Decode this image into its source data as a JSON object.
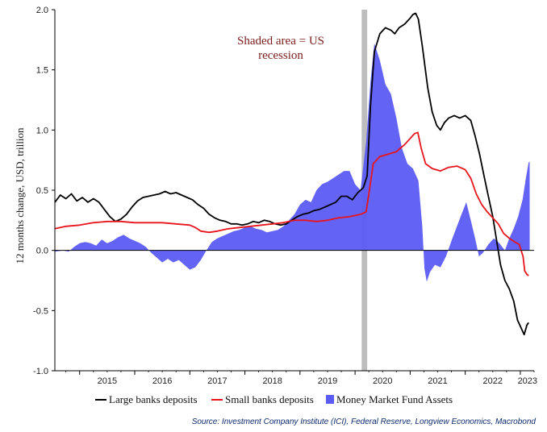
{
  "chart_data": {
    "type": "line",
    "ylabel": "12 months change, USD, trillion",
    "ylim": [
      -1.0,
      2.0
    ],
    "yticks": [
      "2.0",
      "1.5",
      "1.0",
      "0.5",
      "0.0",
      "-0.5",
      "-1.0"
    ],
    "xlim": [
      2014.55,
      2023.25
    ],
    "xticks": [
      "2015",
      "2016",
      "2017",
      "2018",
      "2019",
      "2020",
      "2021",
      "2022",
      "2023"
    ],
    "grid": false,
    "legend_position": "bottom",
    "annotation": "Shaded area = US recession",
    "annotation_lines": [
      "Shaded area = US",
      "recession"
    ],
    "recession_band": [
      2020.12,
      2020.22
    ],
    "source": "Source: Investment Company Institute (ICI), Federal Reserve, Longview Economics, Macrobond",
    "series": [
      {
        "name": "Large banks deposits",
        "kind": "line",
        "color": "#000000",
        "points": [
          [
            2014.55,
            0.4
          ],
          [
            2014.65,
            0.46
          ],
          [
            2014.75,
            0.43
          ],
          [
            2014.85,
            0.47
          ],
          [
            2014.95,
            0.41
          ],
          [
            2015.05,
            0.44
          ],
          [
            2015.15,
            0.4
          ],
          [
            2015.25,
            0.43
          ],
          [
            2015.35,
            0.4
          ],
          [
            2015.45,
            0.34
          ],
          [
            2015.55,
            0.28
          ],
          [
            2015.65,
            0.24
          ],
          [
            2015.75,
            0.26
          ],
          [
            2015.85,
            0.3
          ],
          [
            2015.95,
            0.36
          ],
          [
            2016.05,
            0.41
          ],
          [
            2016.15,
            0.44
          ],
          [
            2016.25,
            0.45
          ],
          [
            2016.35,
            0.46
          ],
          [
            2016.45,
            0.47
          ],
          [
            2016.55,
            0.49
          ],
          [
            2016.65,
            0.47
          ],
          [
            2016.75,
            0.48
          ],
          [
            2016.85,
            0.46
          ],
          [
            2016.95,
            0.44
          ],
          [
            2017.05,
            0.42
          ],
          [
            2017.15,
            0.38
          ],
          [
            2017.25,
            0.35
          ],
          [
            2017.35,
            0.3
          ],
          [
            2017.45,
            0.27
          ],
          [
            2017.55,
            0.25
          ],
          [
            2017.65,
            0.24
          ],
          [
            2017.75,
            0.22
          ],
          [
            2017.85,
            0.22
          ],
          [
            2017.95,
            0.21
          ],
          [
            2018.05,
            0.22
          ],
          [
            2018.15,
            0.24
          ],
          [
            2018.25,
            0.23
          ],
          [
            2018.35,
            0.25
          ],
          [
            2018.45,
            0.24
          ],
          [
            2018.55,
            0.22
          ],
          [
            2018.65,
            0.21
          ],
          [
            2018.75,
            0.22
          ],
          [
            2018.85,
            0.25
          ],
          [
            2018.95,
            0.28
          ],
          [
            2019.05,
            0.3
          ],
          [
            2019.15,
            0.31
          ],
          [
            2019.25,
            0.33
          ],
          [
            2019.35,
            0.34
          ],
          [
            2019.45,
            0.36
          ],
          [
            2019.55,
            0.38
          ],
          [
            2019.65,
            0.4
          ],
          [
            2019.75,
            0.45
          ],
          [
            2019.85,
            0.45
          ],
          [
            2019.95,
            0.42
          ],
          [
            2020.05,
            0.48
          ],
          [
            2020.15,
            0.52
          ],
          [
            2020.22,
            0.62
          ],
          [
            2020.28,
            1.2
          ],
          [
            2020.35,
            1.65
          ],
          [
            2020.45,
            1.8
          ],
          [
            2020.55,
            1.85
          ],
          [
            2020.65,
            1.83
          ],
          [
            2020.72,
            1.8
          ],
          [
            2020.8,
            1.85
          ],
          [
            2020.9,
            1.88
          ],
          [
            2021.0,
            1.93
          ],
          [
            2021.05,
            1.96
          ],
          [
            2021.1,
            1.97
          ],
          [
            2021.15,
            1.92
          ],
          [
            2021.22,
            1.7
          ],
          [
            2021.32,
            1.35
          ],
          [
            2021.4,
            1.15
          ],
          [
            2021.48,
            1.04
          ],
          [
            2021.55,
            1.0
          ],
          [
            2021.62,
            1.06
          ],
          [
            2021.7,
            1.1
          ],
          [
            2021.8,
            1.12
          ],
          [
            2021.9,
            1.1
          ],
          [
            2022.0,
            1.12
          ],
          [
            2022.1,
            1.08
          ],
          [
            2022.18,
            0.95
          ],
          [
            2022.26,
            0.8
          ],
          [
            2022.34,
            0.62
          ],
          [
            2022.42,
            0.45
          ],
          [
            2022.5,
            0.28
          ],
          [
            2022.57,
            0.08
          ],
          [
            2022.64,
            -0.12
          ],
          [
            2022.72,
            -0.25
          ],
          [
            2022.8,
            -0.32
          ],
          [
            2022.88,
            -0.42
          ],
          [
            2022.95,
            -0.58
          ],
          [
            2023.02,
            -0.65
          ],
          [
            2023.07,
            -0.7
          ],
          [
            2023.12,
            -0.62
          ],
          [
            2023.15,
            -0.6
          ]
        ]
      },
      {
        "name": "Small banks deposits",
        "kind": "line",
        "color": "#e8141c",
        "points": [
          [
            2014.55,
            0.18
          ],
          [
            2014.75,
            0.2
          ],
          [
            2015.0,
            0.21
          ],
          [
            2015.25,
            0.23
          ],
          [
            2015.5,
            0.24
          ],
          [
            2015.75,
            0.24
          ],
          [
            2016.0,
            0.23
          ],
          [
            2016.25,
            0.23
          ],
          [
            2016.5,
            0.23
          ],
          [
            2016.75,
            0.22
          ],
          [
            2017.0,
            0.21
          ],
          [
            2017.1,
            0.19
          ],
          [
            2017.2,
            0.16
          ],
          [
            2017.35,
            0.15
          ],
          [
            2017.5,
            0.16
          ],
          [
            2017.7,
            0.18
          ],
          [
            2017.9,
            0.19
          ],
          [
            2018.1,
            0.2
          ],
          [
            2018.3,
            0.21
          ],
          [
            2018.5,
            0.22
          ],
          [
            2018.7,
            0.23
          ],
          [
            2018.9,
            0.25
          ],
          [
            2019.1,
            0.25
          ],
          [
            2019.3,
            0.24
          ],
          [
            2019.5,
            0.25
          ],
          [
            2019.7,
            0.27
          ],
          [
            2019.9,
            0.28
          ],
          [
            2020.1,
            0.3
          ],
          [
            2020.2,
            0.32
          ],
          [
            2020.26,
            0.5
          ],
          [
            2020.33,
            0.72
          ],
          [
            2020.45,
            0.78
          ],
          [
            2020.6,
            0.8
          ],
          [
            2020.75,
            0.82
          ],
          [
            2020.9,
            0.88
          ],
          [
            2021.0,
            0.93
          ],
          [
            2021.08,
            0.97
          ],
          [
            2021.14,
            0.98
          ],
          [
            2021.2,
            0.85
          ],
          [
            2021.28,
            0.72
          ],
          [
            2021.4,
            0.68
          ],
          [
            2021.55,
            0.66
          ],
          [
            2021.7,
            0.69
          ],
          [
            2021.85,
            0.7
          ],
          [
            2022.0,
            0.67
          ],
          [
            2022.1,
            0.6
          ],
          [
            2022.2,
            0.47
          ],
          [
            2022.3,
            0.38
          ],
          [
            2022.4,
            0.32
          ],
          [
            2022.5,
            0.27
          ],
          [
            2022.6,
            0.22
          ],
          [
            2022.7,
            0.14
          ],
          [
            2022.8,
            0.1
          ],
          [
            2022.9,
            0.07
          ],
          [
            2022.98,
            0.05
          ],
          [
            2023.05,
            -0.05
          ],
          [
            2023.08,
            -0.17
          ],
          [
            2023.12,
            -0.2
          ],
          [
            2023.15,
            -0.21
          ]
        ]
      },
      {
        "name": "Money Market Fund Assets",
        "kind": "area",
        "color": "#5b5bf5",
        "points": [
          [
            2014.55,
            -0.01
          ],
          [
            2014.7,
            0.0
          ],
          [
            2014.8,
            -0.01
          ],
          [
            2014.9,
            0.03
          ],
          [
            2015.0,
            0.06
          ],
          [
            2015.1,
            0.07
          ],
          [
            2015.2,
            0.06
          ],
          [
            2015.3,
            0.04
          ],
          [
            2015.4,
            0.09
          ],
          [
            2015.5,
            0.06
          ],
          [
            2015.6,
            0.08
          ],
          [
            2015.7,
            0.11
          ],
          [
            2015.8,
            0.13
          ],
          [
            2015.9,
            0.1
          ],
          [
            2016.0,
            0.08
          ],
          [
            2016.1,
            0.06
          ],
          [
            2016.2,
            0.03
          ],
          [
            2016.3,
            -0.02
          ],
          [
            2016.4,
            -0.06
          ],
          [
            2016.5,
            -0.1
          ],
          [
            2016.6,
            -0.07
          ],
          [
            2016.7,
            -0.1
          ],
          [
            2016.8,
            -0.08
          ],
          [
            2016.9,
            -0.12
          ],
          [
            2017.0,
            -0.16
          ],
          [
            2017.1,
            -0.14
          ],
          [
            2017.2,
            -0.08
          ],
          [
            2017.3,
            0.0
          ],
          [
            2017.4,
            0.07
          ],
          [
            2017.5,
            0.1
          ],
          [
            2017.6,
            0.12
          ],
          [
            2017.7,
            0.14
          ],
          [
            2017.8,
            0.16
          ],
          [
            2017.9,
            0.17
          ],
          [
            2018.0,
            0.19
          ],
          [
            2018.1,
            0.2
          ],
          [
            2018.2,
            0.18
          ],
          [
            2018.3,
            0.17
          ],
          [
            2018.4,
            0.15
          ],
          [
            2018.5,
            0.16
          ],
          [
            2018.6,
            0.17
          ],
          [
            2018.7,
            0.2
          ],
          [
            2018.8,
            0.25
          ],
          [
            2018.9,
            0.3
          ],
          [
            2019.0,
            0.38
          ],
          [
            2019.1,
            0.42
          ],
          [
            2019.2,
            0.4
          ],
          [
            2019.3,
            0.5
          ],
          [
            2019.4,
            0.55
          ],
          [
            2019.5,
            0.57
          ],
          [
            2019.6,
            0.6
          ],
          [
            2019.7,
            0.63
          ],
          [
            2019.8,
            0.66
          ],
          [
            2019.9,
            0.66
          ],
          [
            2020.0,
            0.55
          ],
          [
            2020.1,
            0.5
          ],
          [
            2020.2,
            0.9
          ],
          [
            2020.28,
            1.4
          ],
          [
            2020.35,
            1.72
          ],
          [
            2020.45,
            1.58
          ],
          [
            2020.55,
            1.38
          ],
          [
            2020.65,
            1.3
          ],
          [
            2020.75,
            1.1
          ],
          [
            2020.85,
            0.85
          ],
          [
            2020.95,
            0.72
          ],
          [
            2021.05,
            0.68
          ],
          [
            2021.15,
            0.58
          ],
          [
            2021.22,
            0.2
          ],
          [
            2021.26,
            -0.15
          ],
          [
            2021.3,
            -0.26
          ],
          [
            2021.36,
            -0.18
          ],
          [
            2021.45,
            -0.12
          ],
          [
            2021.55,
            -0.14
          ],
          [
            2021.65,
            -0.05
          ],
          [
            2021.75,
            0.08
          ],
          [
            2021.85,
            0.2
          ],
          [
            2021.95,
            0.32
          ],
          [
            2022.02,
            0.4
          ],
          [
            2022.1,
            0.25
          ],
          [
            2022.18,
            0.1
          ],
          [
            2022.25,
            -0.05
          ],
          [
            2022.32,
            -0.02
          ],
          [
            2022.42,
            0.05
          ],
          [
            2022.52,
            0.1
          ],
          [
            2022.62,
            0.06
          ],
          [
            2022.72,
            0.0
          ],
          [
            2022.8,
            0.1
          ],
          [
            2022.88,
            0.18
          ],
          [
            2022.96,
            0.28
          ],
          [
            2023.04,
            0.42
          ],
          [
            2023.1,
            0.6
          ],
          [
            2023.15,
            0.73
          ],
          [
            2023.17,
            0.74
          ]
        ]
      }
    ]
  }
}
